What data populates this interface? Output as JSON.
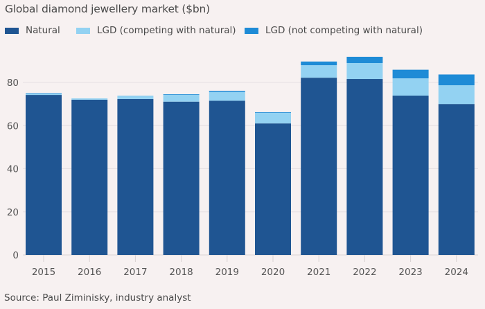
{
  "chart_data": {
    "type": "bar",
    "stacked": true,
    "title": "Global diamond jewellery market ($bn)",
    "xlabel": "",
    "ylabel": "",
    "ylim": [
      0,
      95
    ],
    "yticks": [
      0,
      20,
      40,
      60,
      80
    ],
    "grid": true,
    "legend_position": "top",
    "categories": [
      "2015",
      "2016",
      "2017",
      "2018",
      "2019",
      "2020",
      "2021",
      "2022",
      "2023",
      "2024"
    ],
    "series": [
      {
        "name": "Natural",
        "color": "#1f5592",
        "values": [
          74.2,
          72.0,
          72.3,
          71.1,
          71.5,
          61.0,
          82.2,
          81.6,
          73.9,
          70.0
        ]
      },
      {
        "name": "LGD (competing with natural)",
        "color": "#93d2f2",
        "values": [
          0.7,
          0.6,
          1.6,
          3.1,
          4.1,
          4.9,
          5.8,
          7.4,
          8.0,
          8.7
        ]
      },
      {
        "name": "LGD (not competing with natural)",
        "color": "#1e8bd6",
        "values": [
          0.1,
          0.0,
          0.0,
          0.3,
          0.5,
          0.3,
          1.7,
          2.9,
          4.0,
          5.0
        ]
      }
    ],
    "source": "Source: Paul Ziminisky, industry analyst"
  }
}
